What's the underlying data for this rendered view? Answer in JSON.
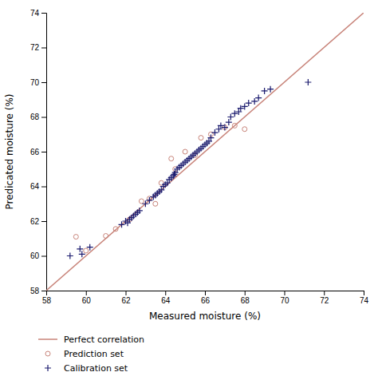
{
  "chart_data": {
    "type": "scatter",
    "xlabel": "Measured moisture (%)",
    "ylabel": "Predicated moisture (%)",
    "xlim": [
      58,
      74
    ],
    "ylim": [
      58,
      74
    ],
    "xticks": [
      58,
      60,
      62,
      64,
      66,
      68,
      70,
      72,
      74
    ],
    "yticks": [
      58,
      60,
      62,
      64,
      66,
      68,
      70,
      72,
      74
    ],
    "legend": "bottom",
    "series": [
      {
        "name": "Perfect correlation",
        "type": "line",
        "color": "#c8847a",
        "x": [
          58,
          74
        ],
        "values": [
          58,
          74
        ]
      },
      {
        "name": "Prediction set",
        "type": "scatter",
        "marker": "circle",
        "color": "#c8847a",
        "x": [
          59.5,
          60.0,
          61.0,
          61.5,
          62.2,
          62.8,
          63.2,
          63.5,
          63.8,
          64.3,
          64.5,
          65.0,
          65.5,
          65.8,
          66.3,
          67.0,
          67.5,
          68.0
        ],
        "values": [
          61.1,
          60.3,
          61.15,
          61.55,
          62.1,
          63.15,
          63.3,
          63.0,
          64.2,
          65.6,
          65.0,
          66.0,
          65.8,
          66.8,
          67.0,
          67.4,
          67.5,
          67.3
        ]
      },
      {
        "name": "Calibration set",
        "type": "scatter",
        "marker": "plus",
        "color": "#1a1a6e",
        "x": [
          59.2,
          59.7,
          59.8,
          60.2,
          61.8,
          62.0,
          62.1,
          62.2,
          62.3,
          62.4,
          62.5,
          62.6,
          62.7,
          63.0,
          63.2,
          63.4,
          63.5,
          63.6,
          63.7,
          63.8,
          63.9,
          64.0,
          64.1,
          64.2,
          64.3,
          64.4,
          64.45,
          64.5,
          64.6,
          64.7,
          64.8,
          64.9,
          65.0,
          65.1,
          65.2,
          65.3,
          65.4,
          65.5,
          65.6,
          65.7,
          65.8,
          65.9,
          66.0,
          66.1,
          66.2,
          66.3,
          66.5,
          66.7,
          66.8,
          67.0,
          67.2,
          67.3,
          67.5,
          67.7,
          67.8,
          68.0,
          68.2,
          68.5,
          68.7,
          69.0,
          69.3,
          71.2
        ],
        "values": [
          60.0,
          60.4,
          60.1,
          60.5,
          61.8,
          62.0,
          61.9,
          62.1,
          62.2,
          62.3,
          62.4,
          62.5,
          62.6,
          63.0,
          63.2,
          63.4,
          63.5,
          63.6,
          63.7,
          63.8,
          64.0,
          64.1,
          64.2,
          64.4,
          64.5,
          64.6,
          64.7,
          64.8,
          65.0,
          65.1,
          65.2,
          65.3,
          65.4,
          65.5,
          65.6,
          65.7,
          65.8,
          65.9,
          66.0,
          66.1,
          66.2,
          66.3,
          66.4,
          66.5,
          66.6,
          66.8,
          67.1,
          67.3,
          67.5,
          67.4,
          67.7,
          68.0,
          68.2,
          68.3,
          68.5,
          68.6,
          68.8,
          68.9,
          69.1,
          69.5,
          69.6,
          70.0
        ]
      }
    ]
  }
}
